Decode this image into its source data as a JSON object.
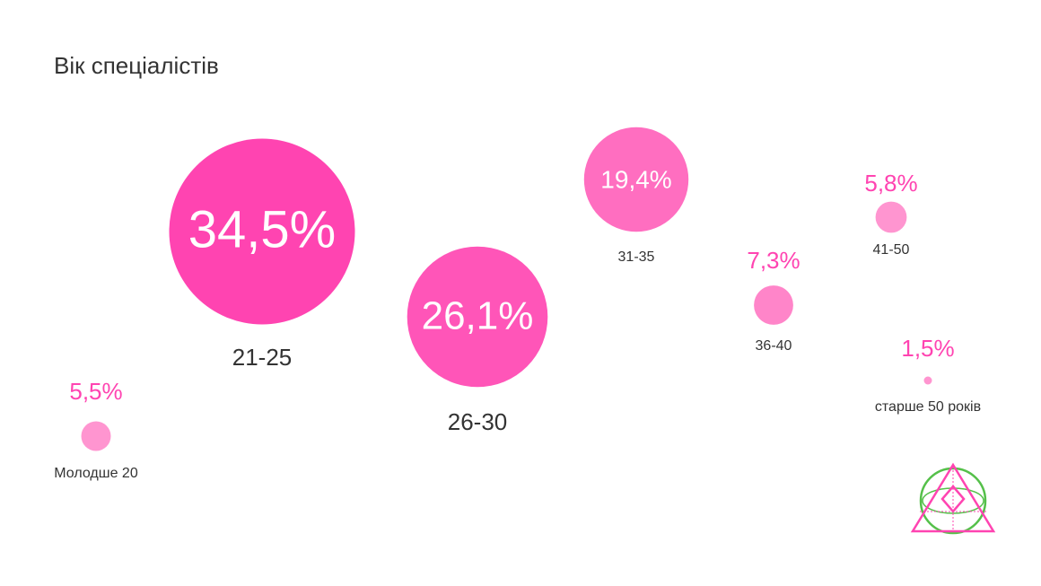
{
  "chart_data": {
    "type": "bubble",
    "title": "Вік спеціалістів",
    "categories": [
      "Молодше 20",
      "21-25",
      "26-30",
      "31-35",
      "36-40",
      "41-50",
      "старше 50 років"
    ],
    "values": [
      5.5,
      34.5,
      26.1,
      19.4,
      7.3,
      5.8,
      1.5
    ],
    "value_labels": [
      "5,5%",
      "34,5%",
      "26,1%",
      "19,4%",
      "7,3%",
      "5,8%",
      "1,5%"
    ],
    "colors": [
      "#ff95d0",
      "#ff44b1",
      "#ff55b8",
      "#ff6ec0",
      "#ff85c9",
      "#ff95d0",
      "#ff95d0"
    ]
  }
}
